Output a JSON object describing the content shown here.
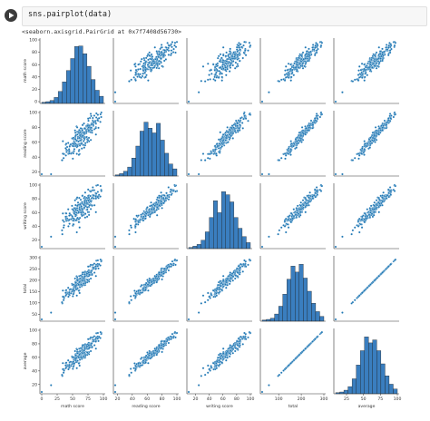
{
  "notebook": {
    "code": "sns.pairplot(data)",
    "output_repr": "<seaborn.axisgrid.PairGrid at 0x7f7408d56730>",
    "run_icon": "play-icon"
  },
  "colors": {
    "point": "#1f77b4",
    "point_edge": "#ffffff",
    "bar": "#3a7ebf",
    "bar_edge": "#1a1a1a",
    "axis": "#333333"
  },
  "chart_data": {
    "type": "scatter",
    "variables": [
      "math score",
      "reading score",
      "writing score",
      "total",
      "average"
    ],
    "ranges": {
      "math score": [
        0,
        100
      ],
      "reading score": [
        17,
        100
      ],
      "writing score": [
        10,
        100
      ],
      "total": [
        27,
        300
      ],
      "average": [
        9,
        100
      ]
    },
    "y_ticks": {
      "math score": [
        0,
        20,
        40,
        60,
        80,
        100
      ],
      "reading score": [
        20,
        40,
        60,
        80,
        100
      ],
      "writing score": [
        20,
        40,
        60,
        80,
        100
      ],
      "total": [
        50,
        100,
        150,
        200,
        250,
        300
      ],
      "average": [
        20,
        40,
        60,
        80,
        100
      ]
    },
    "x_ticks": {
      "math score": [
        0,
        25,
        50,
        75,
        100
      ],
      "reading score": [
        20,
        40,
        60,
        80,
        100
      ],
      "writing score": [
        20,
        40,
        60,
        80,
        100
      ],
      "total": [
        100,
        200,
        300
      ],
      "average": [
        25,
        50,
        75,
        100
      ]
    },
    "x_tick_labels": {
      "math score": [
        "0",
        "25",
        "50",
        "75",
        "100"
      ],
      "reading score": [
        "20",
        "40",
        "60",
        "80",
        "100"
      ],
      "writing score": [
        "20",
        "40",
        "60",
        "80",
        "100"
      ],
      "total": [
        "100",
        "200",
        "300"
      ],
      "average": [
        "25",
        "50",
        "75",
        "100"
      ]
    },
    "histograms": {
      "math score": [
        0.02,
        0.03,
        0.05,
        0.1,
        0.2,
        0.36,
        0.55,
        0.75,
        0.95,
        0.96,
        0.83,
        0.62,
        0.4,
        0.22,
        0.12
      ],
      "reading score": [
        0.02,
        0.04,
        0.08,
        0.15,
        0.3,
        0.5,
        0.75,
        0.9,
        0.8,
        0.72,
        0.88,
        0.6,
        0.38,
        0.2,
        0.12
      ],
      "writing score": [
        0.02,
        0.04,
        0.07,
        0.14,
        0.28,
        0.52,
        0.8,
        0.6,
        0.95,
        0.9,
        0.78,
        0.52,
        0.34,
        0.2,
        0.1
      ],
      "total": [
        0.02,
        0.03,
        0.05,
        0.12,
        0.25,
        0.45,
        0.7,
        0.92,
        0.82,
        0.95,
        0.72,
        0.5,
        0.3,
        0.16,
        0.08
      ],
      "average": [
        0.02,
        0.03,
        0.06,
        0.12,
        0.25,
        0.48,
        0.72,
        0.95,
        0.85,
        0.9,
        0.72,
        0.5,
        0.3,
        0.16,
        0.08
      ]
    },
    "points_per_panel": 220,
    "grid": false,
    "legend": "none"
  }
}
